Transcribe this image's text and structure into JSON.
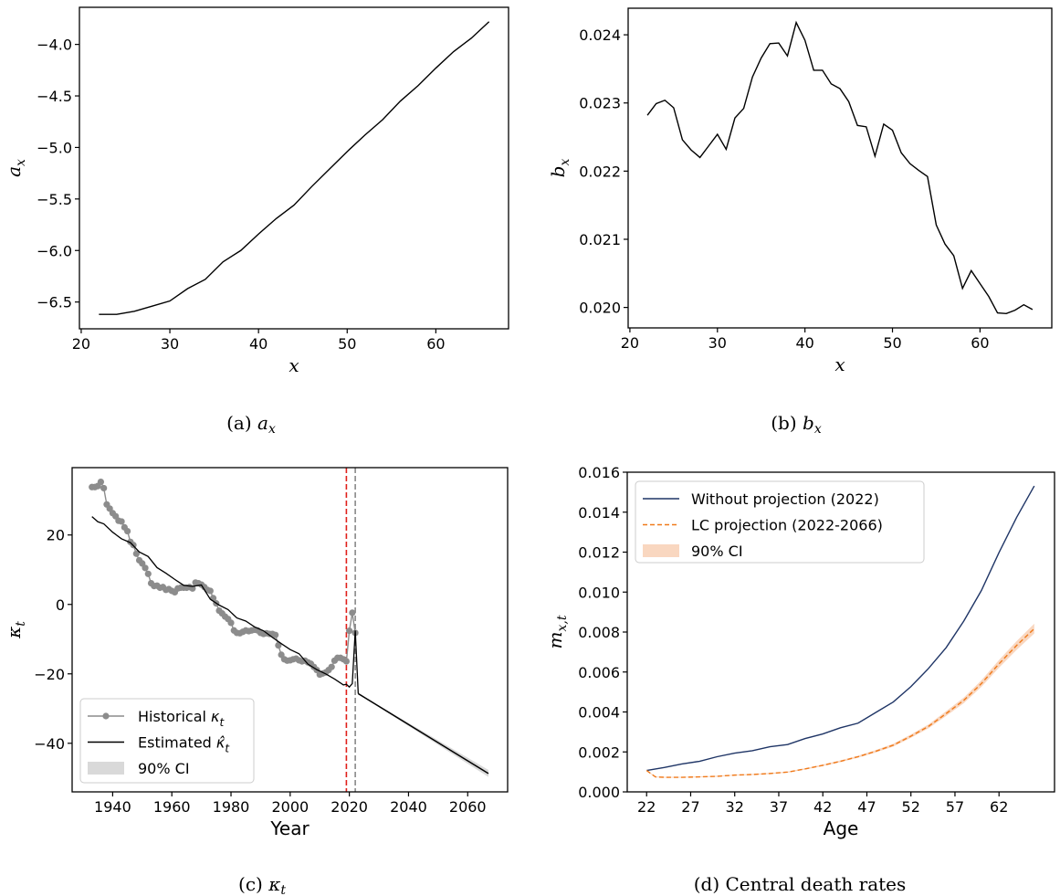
{
  "chart_data": [
    {
      "id": "a",
      "type": "line",
      "caption": {
        "label": "(a) ",
        "base": "a",
        "sub": "x"
      },
      "xlabel": "x",
      "ylabel": {
        "base": "a",
        "sub": "x"
      },
      "xlim": [
        19.8,
        68.2
      ],
      "ylim": [
        -6.76,
        -3.64
      ],
      "xticks": [
        20,
        30,
        40,
        50,
        60
      ],
      "yticks": [
        -6.5,
        -6.0,
        -5.5,
        -5.0,
        -4.5,
        -4.0
      ],
      "ytick_labels": [
        "−6.5",
        "−6.0",
        "−5.5",
        "−5.0",
        "−4.5",
        "−4.0"
      ],
      "series": [
        {
          "color": "#000000",
          "x": [
            22,
            24,
            26,
            28,
            30,
            32,
            34,
            36,
            38,
            40,
            42,
            44,
            46,
            48,
            50,
            52,
            54,
            56,
            58,
            60,
            62,
            64,
            66
          ],
          "y": [
            -6.62,
            -6.62,
            -6.59,
            -6.54,
            -6.49,
            -6.37,
            -6.28,
            -6.11,
            -6.0,
            -5.84,
            -5.69,
            -5.56,
            -5.38,
            -5.21,
            -5.04,
            -4.88,
            -4.73,
            -4.55,
            -4.4,
            -4.23,
            -4.07,
            -3.94,
            -3.78
          ]
        }
      ]
    },
    {
      "id": "b",
      "type": "line",
      "caption": {
        "label": "(b) ",
        "base": "b",
        "sub": "x"
      },
      "xlabel": "x",
      "ylabel": {
        "base": "b",
        "sub": "x"
      },
      "xlim": [
        19.8,
        68.2
      ],
      "ylim": [
        0.0197,
        0.02439
      ],
      "xticks": [
        20,
        30,
        40,
        50,
        60
      ],
      "yticks": [
        0.02,
        0.021,
        0.022,
        0.023,
        0.024
      ],
      "ytick_labels": [
        "0.020",
        "0.021",
        "0.022",
        "0.023",
        "0.024"
      ],
      "series": [
        {
          "color": "#000000",
          "x": [
            22,
            23,
            24,
            25,
            26,
            27,
            28,
            29,
            30,
            31,
            32,
            33,
            34,
            35,
            36,
            37,
            38,
            39,
            40,
            41,
            42,
            43,
            44,
            45,
            46,
            47,
            48,
            49,
            50,
            51,
            52,
            53,
            54,
            55,
            56,
            57,
            58,
            59,
            60,
            61,
            62,
            63,
            64,
            65,
            66
          ],
          "y": [
            0.02282,
            0.02299,
            0.02304,
            0.02293,
            0.02246,
            0.02231,
            0.0222,
            0.02237,
            0.02254,
            0.02232,
            0.02278,
            0.02292,
            0.02338,
            0.02366,
            0.02387,
            0.02388,
            0.02369,
            0.02418,
            0.02392,
            0.02348,
            0.02348,
            0.02328,
            0.02321,
            0.02302,
            0.02267,
            0.02265,
            0.02222,
            0.02269,
            0.0226,
            0.02227,
            0.02211,
            0.02201,
            0.02192,
            0.02121,
            0.02093,
            0.02076,
            0.02028,
            0.02054,
            0.02035,
            0.02016,
            0.01992,
            0.01991,
            0.01996,
            0.02004,
            0.01997
          ]
        }
      ]
    },
    {
      "id": "c",
      "type": "line",
      "caption": {
        "label": "(c) ",
        "base": "κ",
        "sub": "t"
      },
      "xlabel": "Year",
      "ylabel": {
        "base": "κ",
        "sub": "t"
      },
      "xlim": [
        1926.3,
        2073.5
      ],
      "ylim": [
        -54,
        39.4
      ],
      "xticks": [
        1940,
        1960,
        1980,
        2000,
        2020,
        2040,
        2060
      ],
      "yticks": [
        -40,
        -20,
        0,
        20
      ],
      "ytick_labels": [
        "−40",
        "−20",
        "0",
        "20"
      ],
      "vlines": [
        {
          "x": 2019,
          "color": "#e0201b",
          "style": "dashed"
        },
        {
          "x": 2022,
          "color": "#888888",
          "style": "dashed"
        }
      ],
      "legend": {
        "position": "lower-left",
        "entries": [
          {
            "text": "Historical ",
            "sym": "κ",
            "sub": "t"
          },
          {
            "text": "Estimated ",
            "sym": "κ̂",
            "sub": "t"
          },
          {
            "text": "90% CI",
            "sym": "",
            "sub": ""
          }
        ]
      },
      "historical": {
        "color": "#8c8c8c",
        "x": [
          1933,
          1934,
          1935,
          1936,
          1937,
          1938,
          1939,
          1940,
          1941,
          1942,
          1943,
          1944,
          1945,
          1946,
          1947,
          1948,
          1949,
          1950,
          1951,
          1952,
          1953,
          1954,
          1955,
          1956,
          1957,
          1958,
          1959,
          1960,
          1961,
          1962,
          1963,
          1964,
          1965,
          1966,
          1967,
          1968,
          1969,
          1970,
          1971,
          1972,
          1973,
          1974,
          1975,
          1976,
          1977,
          1978,
          1979,
          1980,
          1981,
          1982,
          1983,
          1984,
          1985,
          1986,
          1987,
          1988,
          1989,
          1990,
          1991,
          1992,
          1993,
          1994,
          1995,
          1996,
          1997,
          1998,
          1999,
          2000,
          2001,
          2002,
          2003,
          2004,
          2005,
          2006,
          2007,
          2008,
          2009,
          2010,
          2011,
          2012,
          2013,
          2014,
          2015,
          2016,
          2017,
          2018,
          2019,
          2020,
          2021,
          2022
        ],
        "y": [
          33.8,
          33.8,
          34.1,
          35.3,
          33.5,
          28.8,
          27.6,
          26.3,
          25.4,
          24.1,
          23.9,
          22.2,
          21.1,
          18.0,
          17.1,
          14.6,
          12.7,
          11.8,
          10.5,
          8.8,
          6.1,
          5.3,
          5.4,
          4.8,
          5.0,
          4.2,
          4.4,
          3.9,
          3.5,
          4.6,
          4.8,
          4.8,
          4.8,
          5.0,
          4.6,
          6.3,
          6.1,
          5.7,
          5.0,
          4.2,
          3.9,
          1.8,
          0.3,
          -1.8,
          -2.6,
          -3.5,
          -4.2,
          -5.3,
          -7.5,
          -8.2,
          -8.3,
          -7.9,
          -7.5,
          -7.7,
          -7.5,
          -7.3,
          -7.5,
          -8.2,
          -8.5,
          -8.3,
          -8.5,
          -8.5,
          -8.8,
          -11.8,
          -14.5,
          -15.8,
          -16.2,
          -16.1,
          -15.8,
          -15.6,
          -16.1,
          -16.4,
          -16.2,
          -16.7,
          -17.1,
          -18.0,
          -18.9,
          -20.2,
          -19.9,
          -19.6,
          -18.9,
          -18.0,
          -16.2,
          -15.4,
          -15.4,
          -15.8,
          -16.4,
          -7.6,
          -2.4,
          -8.2
        ]
      },
      "estimated": {
        "color": "#000000",
        "x": [
          1933,
          1935,
          1937,
          1940,
          1943,
          1946,
          1949,
          1952,
          1955,
          1958,
          1961,
          1964,
          1967,
          1970,
          1973,
          1976,
          1979,
          1982,
          1985,
          1988,
          1991,
          1994,
          1997,
          2000,
          2003,
          2006,
          2009,
          2012,
          2015,
          2018,
          2019,
          2020,
          2021,
          2022,
          2023
        ],
        "y": [
          25.3,
          23.8,
          23.2,
          20.8,
          18.9,
          17.8,
          15.1,
          13.8,
          10.6,
          9.0,
          7.2,
          5.5,
          5.2,
          5.6,
          1.5,
          -0.2,
          -1.5,
          -3.9,
          -4.8,
          -6.5,
          -7.6,
          -9.5,
          -11.3,
          -13.0,
          -14.2,
          -17.2,
          -18.8,
          -20.0,
          -21.5,
          -23.2,
          -23.0,
          -23.8,
          -22.8,
          -7.5,
          -25.7
        ]
      },
      "projection": {
        "color": "#000000",
        "x": [
          2023,
          2067
        ],
        "y": [
          -25.7,
          -48.7
        ],
        "ci_lower": [
          -25.8,
          -49.7
        ],
        "ci_upper": [
          -25.6,
          -47.7
        ],
        "ci_color": "#d9d9d9"
      }
    },
    {
      "id": "d",
      "type": "line",
      "caption": {
        "label": "(d) Central death rates",
        "base": "",
        "sub": ""
      },
      "xlabel": "Age",
      "ylabel": {
        "base": "m",
        "sub": "x,t"
      },
      "xlim": [
        19.8,
        68.3
      ],
      "ylim": [
        0,
        0.016
      ],
      "xticks": [
        22,
        27,
        32,
        37,
        42,
        47,
        52,
        57,
        62
      ],
      "yticks": [
        0,
        0.002,
        0.004,
        0.006,
        0.008,
        0.01,
        0.012,
        0.014,
        0.016
      ],
      "ytick_labels": [
        "0.000",
        "0.002",
        "0.004",
        "0.006",
        "0.008",
        "0.010",
        "0.012",
        "0.014",
        "0.016"
      ],
      "legend": {
        "position": "upper-left",
        "entries": [
          {
            "text": "Without projection (2022)"
          },
          {
            "text": "LC projection (2022-2066)"
          },
          {
            "text": "90% CI"
          }
        ]
      },
      "series": [
        {
          "name": "Without projection (2022)",
          "color": "#1f3566",
          "style": "solid",
          "x": [
            22,
            24,
            26,
            28,
            30,
            32,
            34,
            36,
            38,
            40,
            42,
            44,
            46,
            48,
            50,
            52,
            54,
            56,
            58,
            60,
            62,
            64,
            66
          ],
          "y": [
            0.00107,
            0.00122,
            0.0014,
            0.00153,
            0.00176,
            0.00194,
            0.00206,
            0.00226,
            0.00237,
            0.00267,
            0.0029,
            0.00321,
            0.00344,
            0.00397,
            0.0045,
            0.00527,
            0.00618,
            0.00722,
            0.00855,
            0.01008,
            0.01198,
            0.01374,
            0.01531
          ]
        },
        {
          "name": "LC projection (2022-2066)",
          "color": "#f07a1a",
          "style": "dashed",
          "ci_color": "#f9d7c0",
          "x": [
            22,
            23,
            24,
            26,
            28,
            30,
            32,
            34,
            36,
            38,
            40,
            42,
            44,
            46,
            48,
            50,
            52,
            54,
            56,
            58,
            60,
            62,
            64,
            66
          ],
          "y": [
            0.00107,
            0.00075,
            0.00073,
            0.00073,
            0.00075,
            0.00078,
            0.00084,
            0.00087,
            0.00092,
            0.00099,
            0.00115,
            0.00133,
            0.00153,
            0.00176,
            0.00203,
            0.00234,
            0.00279,
            0.00328,
            0.00392,
            0.00458,
            0.00542,
            0.00641,
            0.00733,
            0.00817
          ]
        }
      ]
    }
  ]
}
